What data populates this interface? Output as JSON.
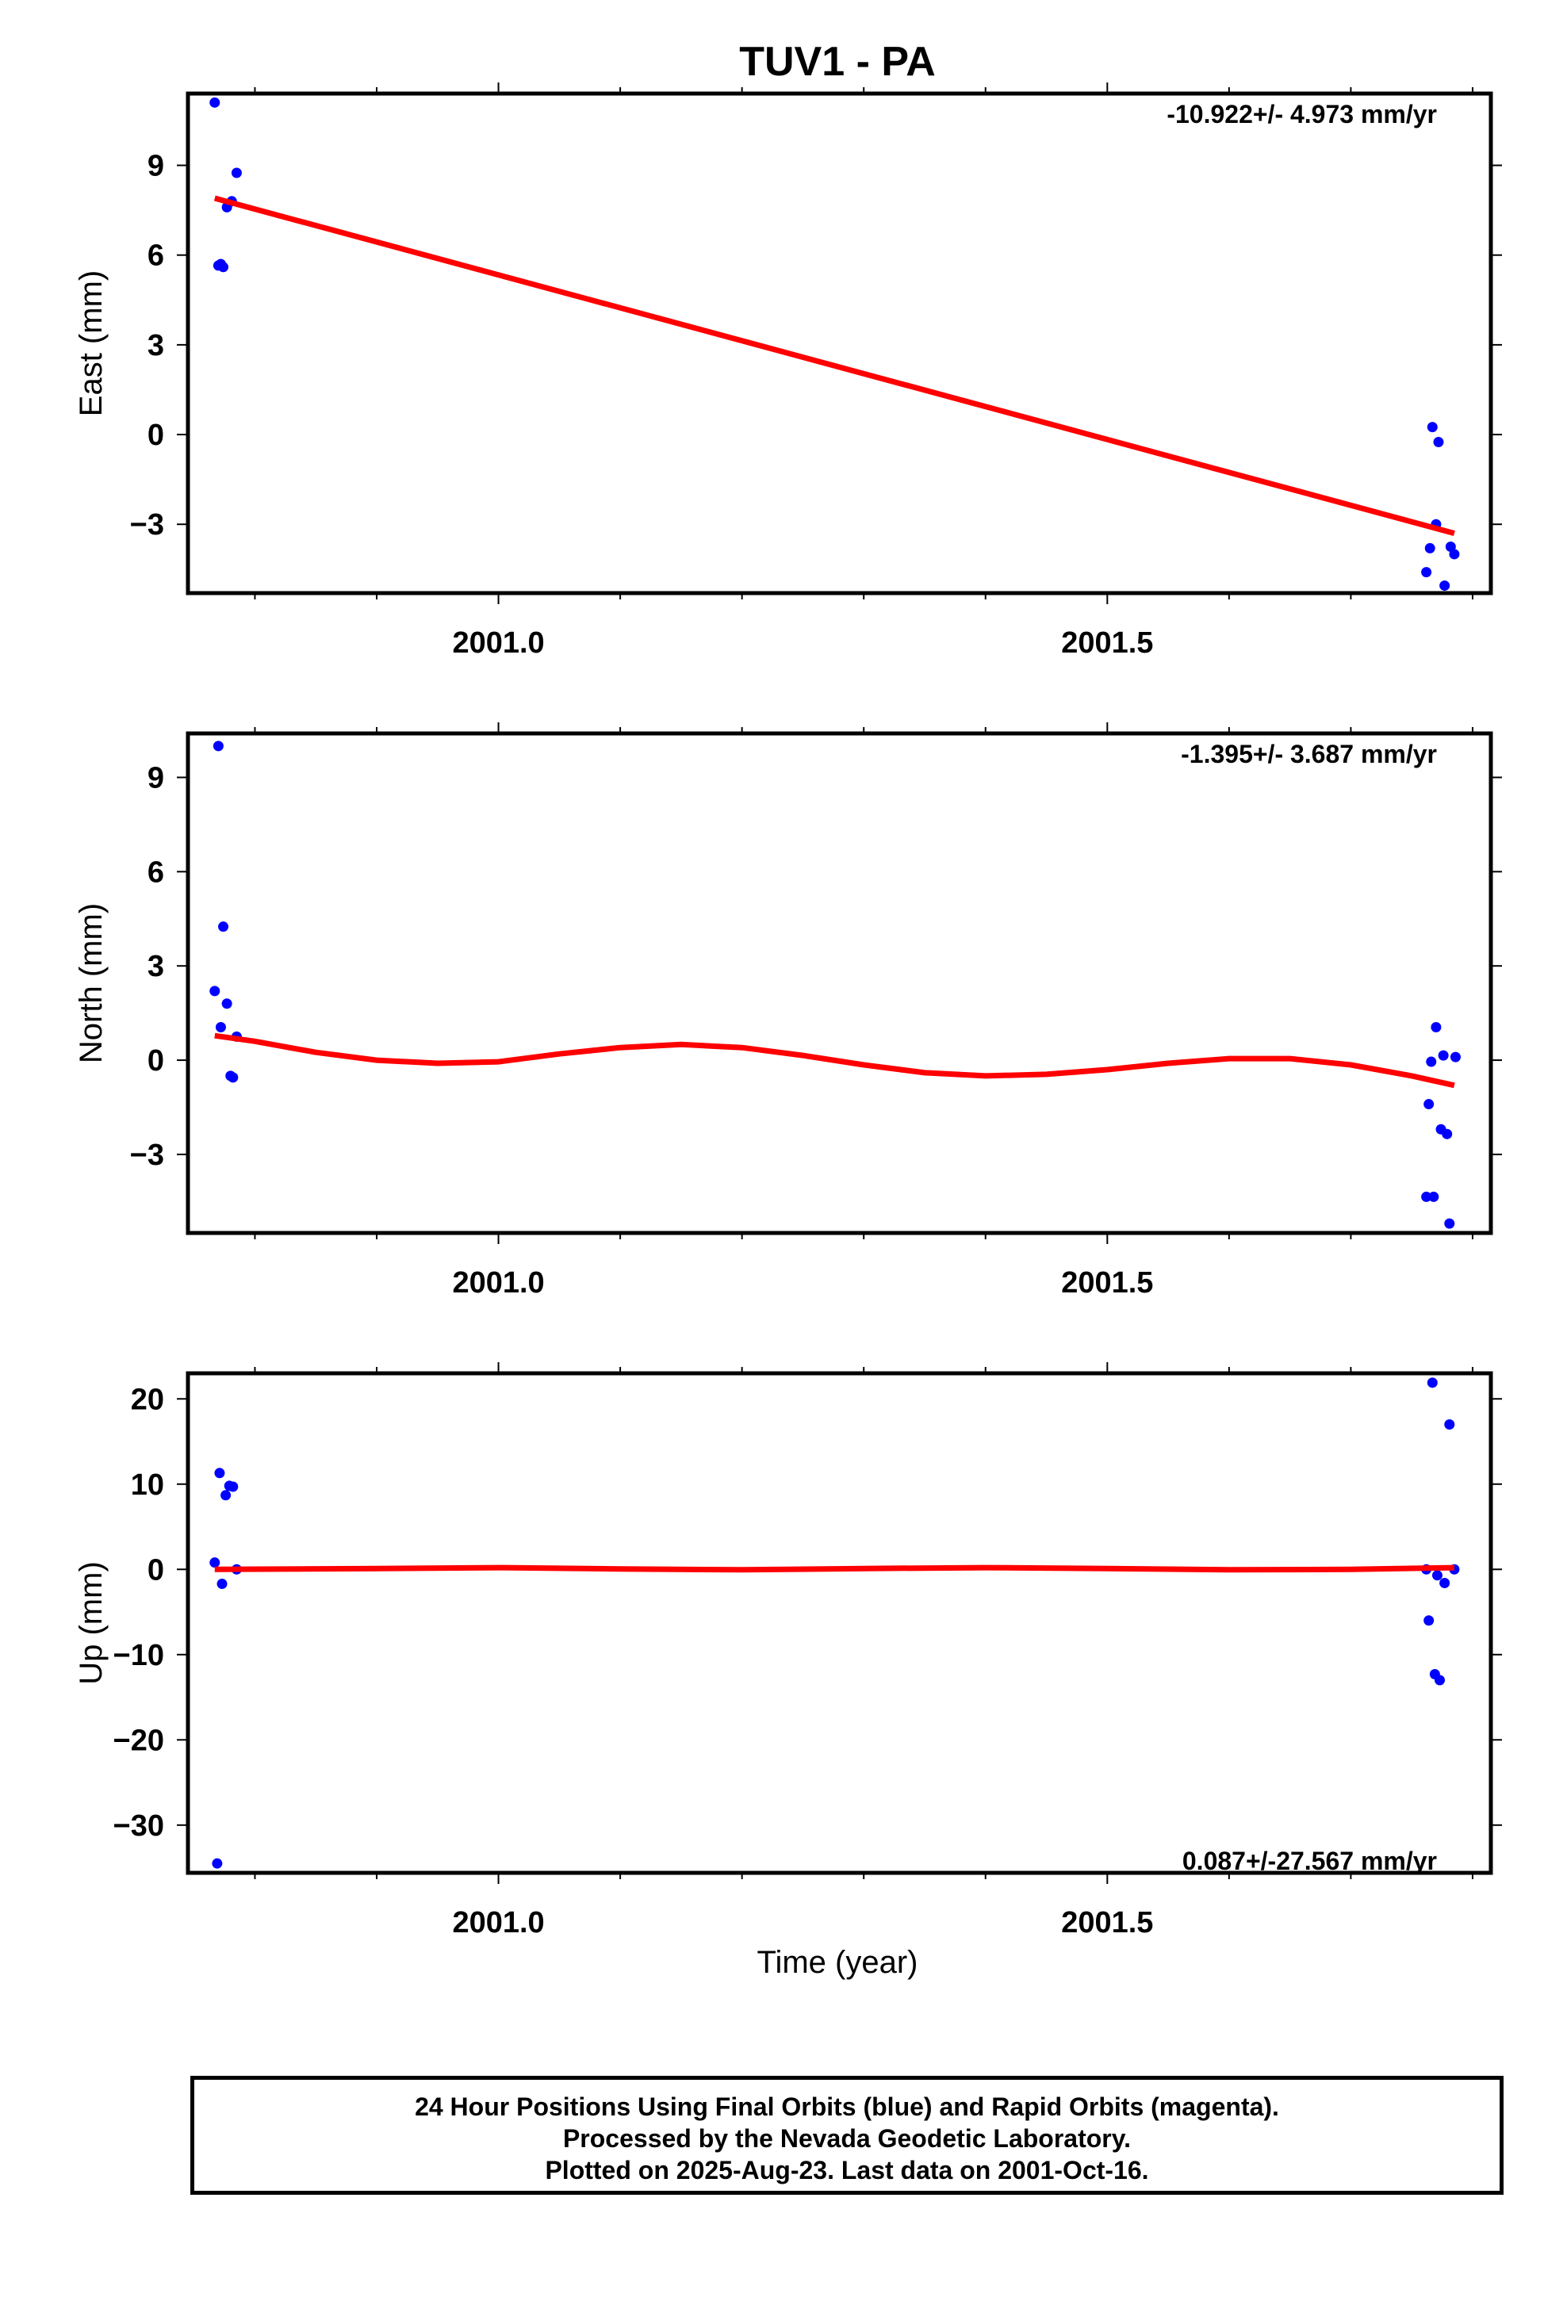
{
  "title": "TUV1 - PA",
  "xlabel": "Time (year)",
  "footer": {
    "line1": "24 Hour Positions Using Final Orbits (blue) and Rapid Orbits (magenta).",
    "line2": "Processed by the Nevada Geodetic Laboratory.",
    "line3": "Plotted on 2025-Aug-23. Last data on 2001-Oct-16."
  },
  "colors": {
    "data": "#0000ff",
    "fit": "#ff0000",
    "axis": "#000000"
  },
  "chart_data": [
    {
      "type": "scatter",
      "ylabel": "East (mm)",
      "rate_label": "-10.922+/- 4.973 mm/yr",
      "xlim": [
        2000.745,
        2001.815
      ],
      "ylim": [
        -5.3,
        11.4
      ],
      "xticks": [
        2001.0,
        2001.5
      ],
      "xtick_labels": [
        "2001.0",
        "2001.5"
      ],
      "yticks": [
        -3,
        0,
        3,
        6,
        9
      ],
      "ytick_labels": [
        "−3",
        "0",
        "3",
        "6",
        "9"
      ],
      "points": [
        [
          2000.767,
          11.1
        ],
        [
          2000.77,
          5.65
        ],
        [
          2000.772,
          5.7
        ],
        [
          2000.774,
          5.6
        ],
        [
          2000.777,
          7.6
        ],
        [
          2000.781,
          7.8
        ],
        [
          2000.785,
          8.75
        ],
        [
          2001.762,
          -4.6
        ],
        [
          2001.765,
          -3.8
        ],
        [
          2001.767,
          0.25
        ],
        [
          2001.77,
          -3.0
        ],
        [
          2001.772,
          -0.25
        ],
        [
          2001.777,
          -5.05
        ],
        [
          2001.782,
          -3.75
        ],
        [
          2001.785,
          -4.0
        ]
      ],
      "fit": [
        [
          2000.767,
          7.9
        ],
        [
          2001.785,
          -3.3
        ]
      ]
    },
    {
      "type": "scatter",
      "ylabel": "North (mm)",
      "rate_label": "-1.395+/- 3.687 mm/yr",
      "xlim": [
        2000.745,
        2001.815
      ],
      "ylim": [
        -5.5,
        10.4
      ],
      "xticks": [
        2001.0,
        2001.5
      ],
      "xtick_labels": [
        "2001.0",
        "2001.5"
      ],
      "yticks": [
        -3,
        0,
        3,
        6,
        9
      ],
      "ytick_labels": [
        "−3",
        "0",
        "3",
        "6",
        "9"
      ],
      "points": [
        [
          2000.767,
          2.2
        ],
        [
          2000.77,
          10.0
        ],
        [
          2000.772,
          1.05
        ],
        [
          2000.774,
          4.25
        ],
        [
          2000.777,
          1.8
        ],
        [
          2000.78,
          -0.5
        ],
        [
          2000.782,
          -0.55
        ],
        [
          2000.785,
          0.75
        ],
        [
          2001.762,
          -4.35
        ],
        [
          2001.764,
          -1.4
        ],
        [
          2001.766,
          -0.05
        ],
        [
          2001.768,
          -4.35
        ],
        [
          2001.77,
          1.05
        ],
        [
          2001.774,
          -2.2
        ],
        [
          2001.776,
          0.15
        ],
        [
          2001.779,
          -2.35
        ],
        [
          2001.781,
          -5.2
        ],
        [
          2001.786,
          0.1
        ]
      ],
      "fit": [
        [
          2000.767,
          0.78
        ],
        [
          2000.8,
          0.6
        ],
        [
          2000.85,
          0.25
        ],
        [
          2000.9,
          0.0
        ],
        [
          2000.95,
          -0.1
        ],
        [
          2001.0,
          -0.05
        ],
        [
          2001.05,
          0.2
        ],
        [
          2001.1,
          0.4
        ],
        [
          2001.15,
          0.5
        ],
        [
          2001.2,
          0.4
        ],
        [
          2001.25,
          0.15
        ],
        [
          2001.3,
          -0.15
        ],
        [
          2001.35,
          -0.4
        ],
        [
          2001.4,
          -0.5
        ],
        [
          2001.45,
          -0.45
        ],
        [
          2001.5,
          -0.3
        ],
        [
          2001.55,
          -0.1
        ],
        [
          2001.6,
          0.05
        ],
        [
          2001.65,
          0.05
        ],
        [
          2001.7,
          -0.15
        ],
        [
          2001.75,
          -0.5
        ],
        [
          2001.785,
          -0.8
        ]
      ]
    },
    {
      "type": "scatter",
      "ylabel": "Up (mm)",
      "rate_label": "0.087+/-27.567 mm/yr",
      "xlim": [
        2000.745,
        2001.815
      ],
      "ylim": [
        -35.6,
        23.0
      ],
      "xticks": [
        2001.0,
        2001.5
      ],
      "xtick_labels": [
        "2001.0",
        "2001.5"
      ],
      "yticks": [
        -30,
        -20,
        -10,
        0,
        10,
        20
      ],
      "ytick_labels": [
        "−30",
        "−20",
        "−10",
        "0",
        "10",
        "20"
      ],
      "points": [
        [
          2000.767,
          0.8
        ],
        [
          2000.769,
          -34.5
        ],
        [
          2000.771,
          11.3
        ],
        [
          2000.773,
          -1.7
        ],
        [
          2000.776,
          8.7
        ],
        [
          2000.779,
          9.8
        ],
        [
          2000.782,
          9.7
        ],
        [
          2000.785,
          0.0
        ],
        [
          2001.762,
          0.0
        ],
        [
          2001.764,
          -6.0
        ],
        [
          2001.767,
          21.9
        ],
        [
          2001.769,
          -12.3
        ],
        [
          2001.771,
          -0.7
        ],
        [
          2001.773,
          -13.0
        ],
        [
          2001.777,
          -1.6
        ],
        [
          2001.781,
          17.0
        ],
        [
          2001.785,
          0.0
        ]
      ],
      "fit": [
        [
          2000.767,
          0.0
        ],
        [
          2000.9,
          0.1
        ],
        [
          2001.0,
          0.2
        ],
        [
          2001.1,
          0.05
        ],
        [
          2001.2,
          -0.05
        ],
        [
          2001.3,
          0.1
        ],
        [
          2001.4,
          0.2
        ],
        [
          2001.5,
          0.1
        ],
        [
          2001.6,
          -0.05
        ],
        [
          2001.7,
          0.0
        ],
        [
          2001.785,
          0.2
        ]
      ]
    }
  ]
}
